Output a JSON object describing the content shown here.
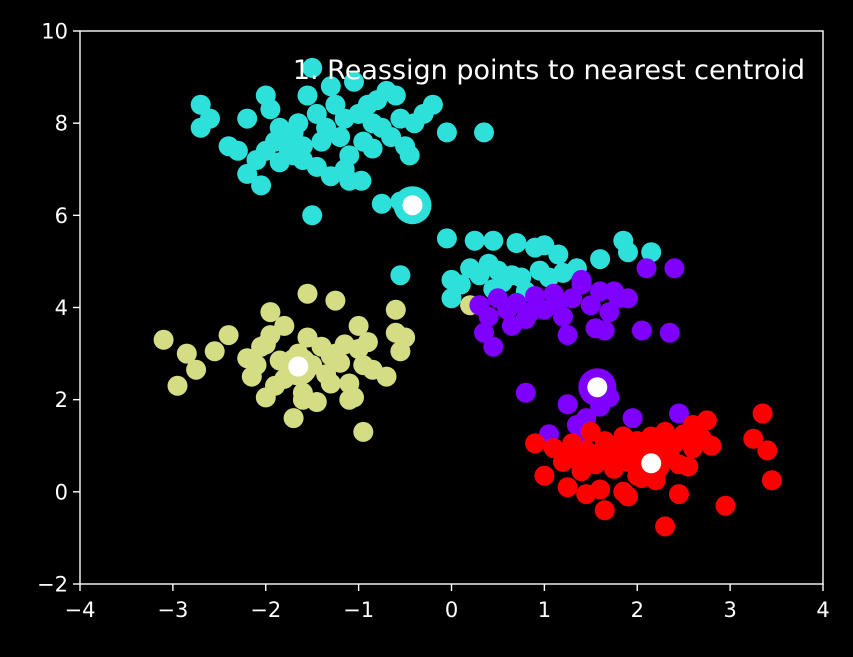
{
  "chart_data": {
    "type": "scatter",
    "title": "1. Reassign points to nearest centroid",
    "xlabel": "",
    "ylabel": "",
    "xlim": [
      -4,
      4
    ],
    "ylim": [
      -2,
      10
    ],
    "x_ticks": [
      "−4",
      "−3",
      "−2",
      "−1",
      "0",
      "1",
      "2",
      "3",
      "4"
    ],
    "y_ticks": [
      "−2",
      "0",
      "2",
      "4",
      "6",
      "8",
      "10"
    ],
    "grid": false,
    "background": "#000000",
    "foreground": "#ffffff",
    "centroid_color": "#ffffff",
    "series": [
      {
        "color": "#2ee0da",
        "centroid": [
          -0.42,
          6.22
        ],
        "points": [
          [
            -2.7,
            8.4
          ],
          [
            -2.6,
            8.1
          ],
          [
            -2.7,
            7.9
          ],
          [
            -2.4,
            7.5
          ],
          [
            -2.3,
            7.4
          ],
          [
            -2.2,
            8.1
          ],
          [
            -2.0,
            8.6
          ],
          [
            -1.95,
            8.3
          ],
          [
            -1.85,
            7.9
          ],
          [
            -1.8,
            7.6
          ],
          [
            -1.75,
            7.4
          ],
          [
            -1.7,
            7.8
          ],
          [
            -1.65,
            8.0
          ],
          [
            -1.6,
            7.5
          ],
          [
            -1.55,
            8.6
          ],
          [
            -1.5,
            9.2
          ],
          [
            -1.45,
            8.2
          ],
          [
            -1.4,
            7.6
          ],
          [
            -1.35,
            7.9
          ],
          [
            -1.3,
            8.8
          ],
          [
            -1.25,
            8.4
          ],
          [
            -1.2,
            7.7
          ],
          [
            -1.15,
            8.1
          ],
          [
            -1.1,
            7.3
          ],
          [
            -1.05,
            8.9
          ],
          [
            -1.0,
            8.2
          ],
          [
            -0.95,
            7.6
          ],
          [
            -0.9,
            8.4
          ],
          [
            -0.85,
            8.0
          ],
          [
            -0.8,
            8.5
          ],
          [
            -0.75,
            7.9
          ],
          [
            -0.7,
            8.7
          ],
          [
            -0.65,
            7.7
          ],
          [
            -0.6,
            8.6
          ],
          [
            -0.55,
            8.1
          ],
          [
            -0.5,
            7.5
          ],
          [
            -0.45,
            7.3
          ],
          [
            -0.4,
            8.0
          ],
          [
            -0.3,
            8.2
          ],
          [
            -0.2,
            8.4
          ],
          [
            -2.1,
            7.2
          ],
          [
            -2.2,
            6.9
          ],
          [
            -2.05,
            6.65
          ],
          [
            -1.9,
            7.6
          ],
          [
            -1.6,
            7.2
          ],
          [
            -1.3,
            6.85
          ],
          [
            -1.1,
            6.75
          ],
          [
            -0.97,
            6.75
          ],
          [
            -1.5,
            6.0
          ],
          [
            -0.75,
            6.25
          ],
          [
            -0.55,
            6.3
          ],
          [
            -0.45,
            6.2
          ],
          [
            -0.05,
            7.8
          ],
          [
            0.35,
            7.8
          ],
          [
            -1.15,
            7.0
          ],
          [
            -1.7,
            7.3
          ],
          [
            -2.0,
            7.4
          ],
          [
            -1.85,
            7.15
          ],
          [
            -1.45,
            7.05
          ],
          [
            -0.85,
            7.45
          ],
          [
            -0.05,
            5.5
          ],
          [
            0.25,
            5.45
          ],
          [
            0.45,
            5.45
          ],
          [
            0.7,
            5.4
          ],
          [
            0.9,
            5.3
          ],
          [
            1.0,
            5.35
          ],
          [
            1.15,
            5.15
          ],
          [
            1.35,
            4.85
          ],
          [
            1.6,
            5.05
          ],
          [
            1.85,
            5.45
          ],
          [
            1.9,
            5.2
          ],
          [
            2.15,
            5.2
          ],
          [
            0.0,
            4.6
          ],
          [
            0.1,
            4.5
          ],
          [
            0.2,
            4.85
          ],
          [
            0.3,
            4.7
          ],
          [
            0.4,
            4.95
          ],
          [
            0.5,
            4.8
          ],
          [
            0.55,
            4.55
          ],
          [
            0.65,
            4.7
          ],
          [
            0.75,
            4.65
          ],
          [
            0.8,
            4.35
          ],
          [
            0.95,
            4.8
          ],
          [
            1.05,
            4.65
          ],
          [
            1.2,
            4.75
          ],
          [
            0.0,
            4.2
          ],
          [
            0.45,
            4.4
          ],
          [
            -0.55,
            4.7
          ]
        ]
      },
      {
        "color": "#d4dc84",
        "centroid": [
          -1.65,
          2.72
        ],
        "points": [
          [
            -3.1,
            3.3
          ],
          [
            -2.85,
            3.0
          ],
          [
            -2.75,
            2.65
          ],
          [
            -2.95,
            2.3
          ],
          [
            -2.55,
            3.05
          ],
          [
            -2.4,
            3.4
          ],
          [
            -2.2,
            2.9
          ],
          [
            -2.15,
            2.5
          ],
          [
            -2.1,
            2.75
          ],
          [
            -2.05,
            3.15
          ],
          [
            -2.0,
            2.05
          ],
          [
            -1.95,
            3.4
          ],
          [
            -1.9,
            2.3
          ],
          [
            -1.85,
            2.85
          ],
          [
            -1.8,
            3.6
          ],
          [
            -1.75,
            2.55
          ],
          [
            -1.7,
            1.6
          ],
          [
            -1.65,
            3.0
          ],
          [
            -1.6,
            2.15
          ],
          [
            -1.55,
            3.35
          ],
          [
            -1.5,
            2.75
          ],
          [
            -1.45,
            1.95
          ],
          [
            -1.4,
            3.15
          ],
          [
            -1.35,
            2.55
          ],
          [
            -1.3,
            2.35
          ],
          [
            -1.25,
            3.0
          ],
          [
            -1.2,
            2.8
          ],
          [
            -1.15,
            3.2
          ],
          [
            -1.1,
            2.35
          ],
          [
            -1.05,
            2.05
          ],
          [
            -1.0,
            3.1
          ],
          [
            -0.95,
            2.75
          ],
          [
            -0.9,
            3.25
          ],
          [
            -0.85,
            2.65
          ],
          [
            -0.7,
            2.5
          ],
          [
            -0.6,
            3.45
          ],
          [
            -0.55,
            3.05
          ],
          [
            -0.5,
            3.35
          ],
          [
            -0.6,
            3.95
          ],
          [
            -1.0,
            3.6
          ],
          [
            -1.25,
            4.15
          ],
          [
            -1.55,
            4.3
          ],
          [
            -1.95,
            3.9
          ],
          [
            -0.95,
            1.3
          ],
          [
            -1.1,
            2.0
          ],
          [
            -1.8,
            2.45
          ],
          [
            -1.6,
            2.0
          ],
          [
            -1.3,
            2.95
          ],
          [
            -2.0,
            3.2
          ],
          [
            0.2,
            4.05
          ]
        ]
      },
      {
        "color": "#8000ff",
        "centroid": [
          1.57,
          2.27
        ],
        "points": [
          [
            0.3,
            4.05
          ],
          [
            0.4,
            3.8
          ],
          [
            0.5,
            4.2
          ],
          [
            0.6,
            3.95
          ],
          [
            0.7,
            4.1
          ],
          [
            0.8,
            3.75
          ],
          [
            0.9,
            4.25
          ],
          [
            1.0,
            3.95
          ],
          [
            1.1,
            4.3
          ],
          [
            1.2,
            3.8
          ],
          [
            1.3,
            4.2
          ],
          [
            1.4,
            4.5
          ],
          [
            1.5,
            4.05
          ],
          [
            1.6,
            4.35
          ],
          [
            1.7,
            3.9
          ],
          [
            1.8,
            4.2
          ],
          [
            1.9,
            4.2
          ],
          [
            1.4,
            4.6
          ],
          [
            0.35,
            3.45
          ],
          [
            0.45,
            3.15
          ],
          [
            0.65,
            3.6
          ],
          [
            0.85,
            3.9
          ],
          [
            1.25,
            3.4
          ],
          [
            1.55,
            3.55
          ],
          [
            1.65,
            3.5
          ],
          [
            2.05,
            3.5
          ],
          [
            2.35,
            3.45
          ],
          [
            2.1,
            4.85
          ],
          [
            2.4,
            4.85
          ],
          [
            0.8,
            2.15
          ],
          [
            1.25,
            1.9
          ],
          [
            1.45,
            1.6
          ],
          [
            1.55,
            2.2
          ],
          [
            1.7,
            2.05
          ],
          [
            1.6,
            1.85
          ],
          [
            1.35,
            1.45
          ],
          [
            1.05,
            1.25
          ],
          [
            1.95,
            1.6
          ],
          [
            2.45,
            1.7
          ],
          [
            1.4,
            1.2
          ],
          [
            1.15,
            4.1
          ],
          [
            1.75,
            4.35
          ]
        ]
      },
      {
        "color": "#ff0000",
        "centroid": [
          2.15,
          0.62
        ],
        "points": [
          [
            0.9,
            1.05
          ],
          [
            1.1,
            0.95
          ],
          [
            1.2,
            0.65
          ],
          [
            1.25,
            0.85
          ],
          [
            1.3,
            1.05
          ],
          [
            1.35,
            0.7
          ],
          [
            1.45,
            0.9
          ],
          [
            1.5,
            1.3
          ],
          [
            1.55,
            0.6
          ],
          [
            1.6,
            0.85
          ],
          [
            1.65,
            1.1
          ],
          [
            1.7,
            0.75
          ],
          [
            1.75,
            0.5
          ],
          [
            1.8,
            0.95
          ],
          [
            1.85,
            1.2
          ],
          [
            1.9,
            0.65
          ],
          [
            1.95,
            0.85
          ],
          [
            2.0,
            1.1
          ],
          [
            2.05,
            0.55
          ],
          [
            2.1,
            0.9
          ],
          [
            2.15,
            1.2
          ],
          [
            2.2,
            0.7
          ],
          [
            2.25,
            1.0
          ],
          [
            2.3,
            1.3
          ],
          [
            2.35,
            0.8
          ],
          [
            2.4,
            1.05
          ],
          [
            2.45,
            0.6
          ],
          [
            2.5,
            1.25
          ],
          [
            2.55,
            0.55
          ],
          [
            2.6,
            0.95
          ],
          [
            2.7,
            1.15
          ],
          [
            2.75,
            1.55
          ],
          [
            1.25,
            0.1
          ],
          [
            1.45,
            -0.05
          ],
          [
            1.6,
            0.05
          ],
          [
            1.65,
            -0.4
          ],
          [
            1.85,
            0.0
          ],
          [
            1.9,
            -0.1
          ],
          [
            2.05,
            0.3
          ],
          [
            2.3,
            -0.75
          ],
          [
            2.45,
            -0.05
          ],
          [
            2.95,
            -0.3
          ],
          [
            3.25,
            1.15
          ],
          [
            3.35,
            1.7
          ],
          [
            3.4,
            0.9
          ],
          [
            3.45,
            0.25
          ],
          [
            1.0,
            0.35
          ],
          [
            1.4,
            0.45
          ],
          [
            2.0,
            0.35
          ],
          [
            2.2,
            0.25
          ],
          [
            2.6,
            1.45
          ],
          [
            2.8,
            1.0
          ]
        ]
      }
    ]
  }
}
